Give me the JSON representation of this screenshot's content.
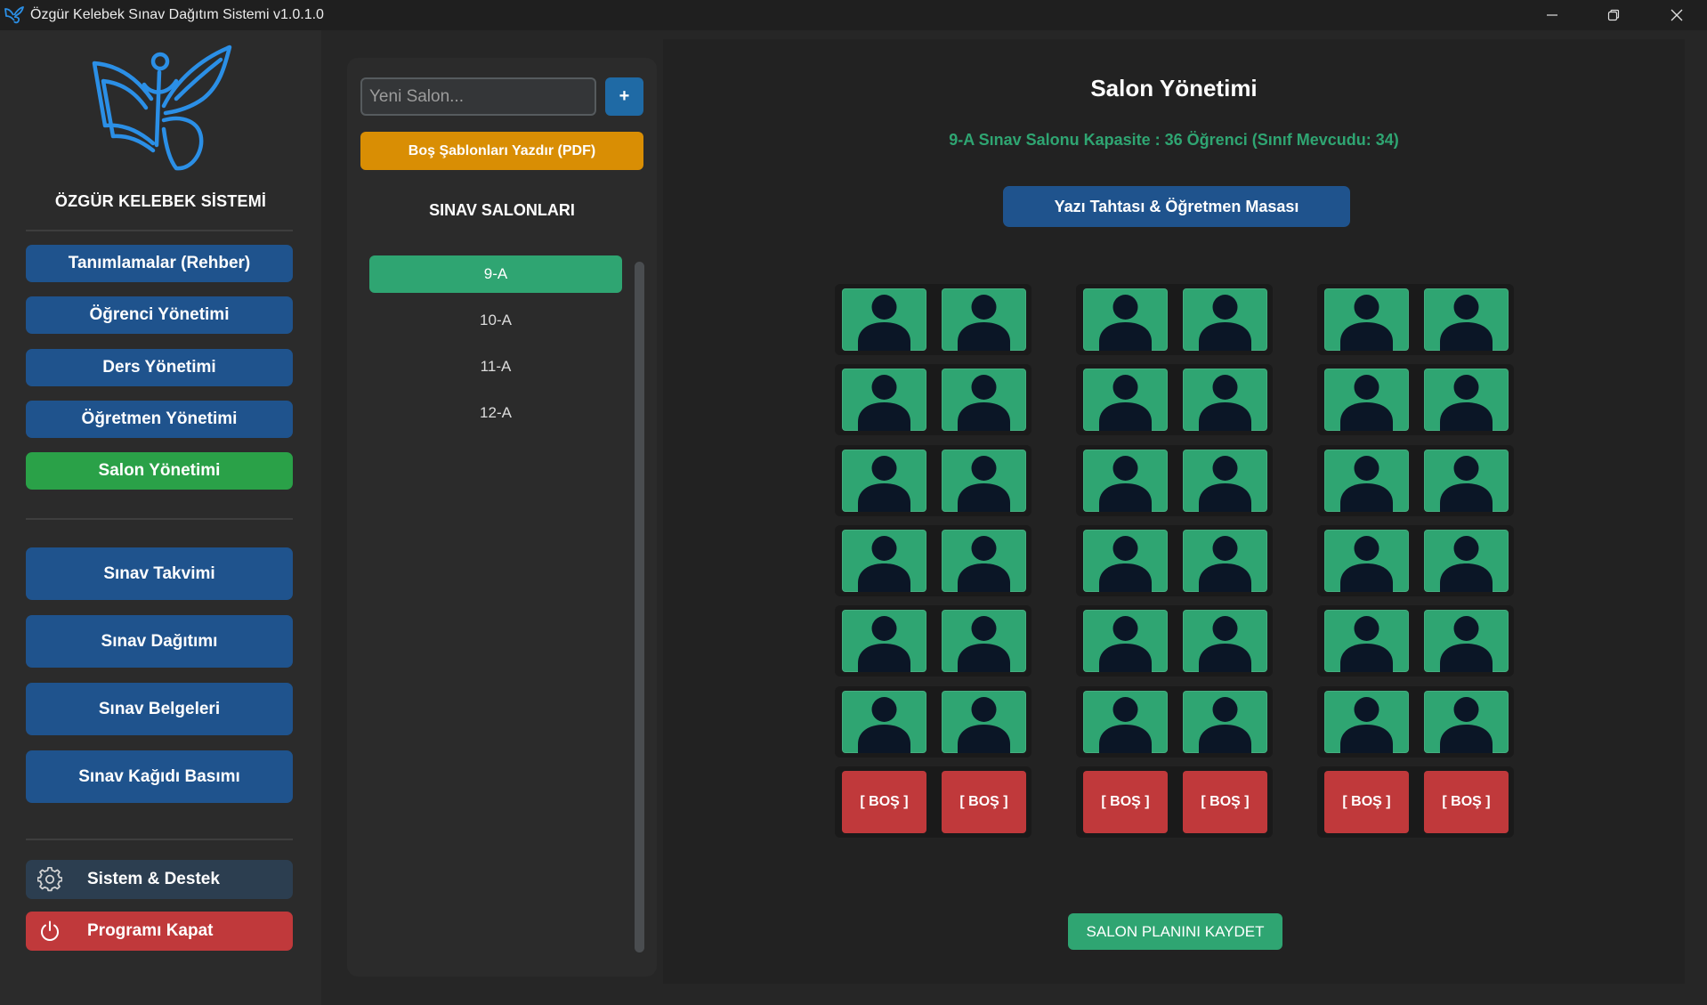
{
  "window": {
    "title": "Özgür Kelebek Sınav Dağıtım Sistemi v1.0.1.0",
    "controls": [
      "minimize-icon",
      "restore-icon",
      "close-icon"
    ]
  },
  "icons": {
    "app": "butterfly-icon",
    "logo": "butterfly-logo-icon",
    "system": "gear-icon",
    "exit": "power-icon",
    "seat": "person-icon"
  },
  "colors": {
    "nav_blue": "#1f538d",
    "active_nav_green": "#2aa148",
    "accent_green": "#2fa572",
    "print_orange": "#d98e04",
    "danger_red": "#c0393b",
    "system_slate": "#2c3e50",
    "logo_blue": "#2b8fe6",
    "seat_icon_navy": "#0b1626"
  },
  "sidebar": {
    "brand": "ÖZGÜR KELEBEK SİSTEMİ",
    "management_items": [
      {
        "label": "Tanımlamalar (Rehber)",
        "active": false
      },
      {
        "label": "Öğrenci Yönetimi",
        "active": false
      },
      {
        "label": "Ders Yönetimi",
        "active": false
      },
      {
        "label": "Öğretmen Yönetimi",
        "active": false
      },
      {
        "label": "Salon Yönetimi",
        "active": true
      }
    ],
    "exam_items": [
      {
        "label": "Sınav Takvimi"
      },
      {
        "label": "Sınav Dağıtımı"
      },
      {
        "label": "Sınav Belgeleri"
      },
      {
        "label": "Sınav Kağıdı Basımı"
      }
    ],
    "system_label": "Sistem & Destek",
    "exit_label": "Programı Kapat"
  },
  "salons": {
    "new_salon_placeholder": "Yeni Salon...",
    "add_label": "+",
    "print_templates_label": "Boş Şablonları Yazdır (PDF)",
    "heading": "SINAV SALONLARI",
    "items": [
      {
        "label": "9-A",
        "selected": true
      },
      {
        "label": "10-A",
        "selected": false
      },
      {
        "label": "11-A",
        "selected": false
      },
      {
        "label": "12-A",
        "selected": false
      }
    ]
  },
  "main": {
    "title": "Salon Yönetimi",
    "capacity_text": "9-A Sınav Salonu Kapasite : 36 Öğrenci (Sınıf Mevcudu: 34)",
    "board_label": "Yazı Tahtası & Öğretmen Masası",
    "seating": {
      "empty_label": "[ BOŞ ]",
      "rows": [
        [
          [
            "occupied",
            "occupied"
          ],
          [
            "occupied",
            "occupied"
          ],
          [
            "occupied",
            "occupied"
          ]
        ],
        [
          [
            "occupied",
            "occupied"
          ],
          [
            "occupied",
            "occupied"
          ],
          [
            "occupied",
            "occupied"
          ]
        ],
        [
          [
            "occupied",
            "occupied"
          ],
          [
            "occupied",
            "occupied"
          ],
          [
            "occupied",
            "occupied"
          ]
        ],
        [
          [
            "occupied",
            "occupied"
          ],
          [
            "occupied",
            "occupied"
          ],
          [
            "occupied",
            "occupied"
          ]
        ],
        [
          [
            "occupied",
            "occupied"
          ],
          [
            "occupied",
            "occupied"
          ],
          [
            "occupied",
            "occupied"
          ]
        ],
        [
          [
            "occupied",
            "occupied"
          ],
          [
            "occupied",
            "occupied"
          ],
          [
            "occupied",
            "occupied"
          ]
        ],
        [
          [
            "empty",
            "empty"
          ],
          [
            "empty",
            "empty"
          ],
          [
            "empty",
            "empty"
          ]
        ]
      ]
    },
    "save_label": "SALON PLANINI KAYDET"
  }
}
